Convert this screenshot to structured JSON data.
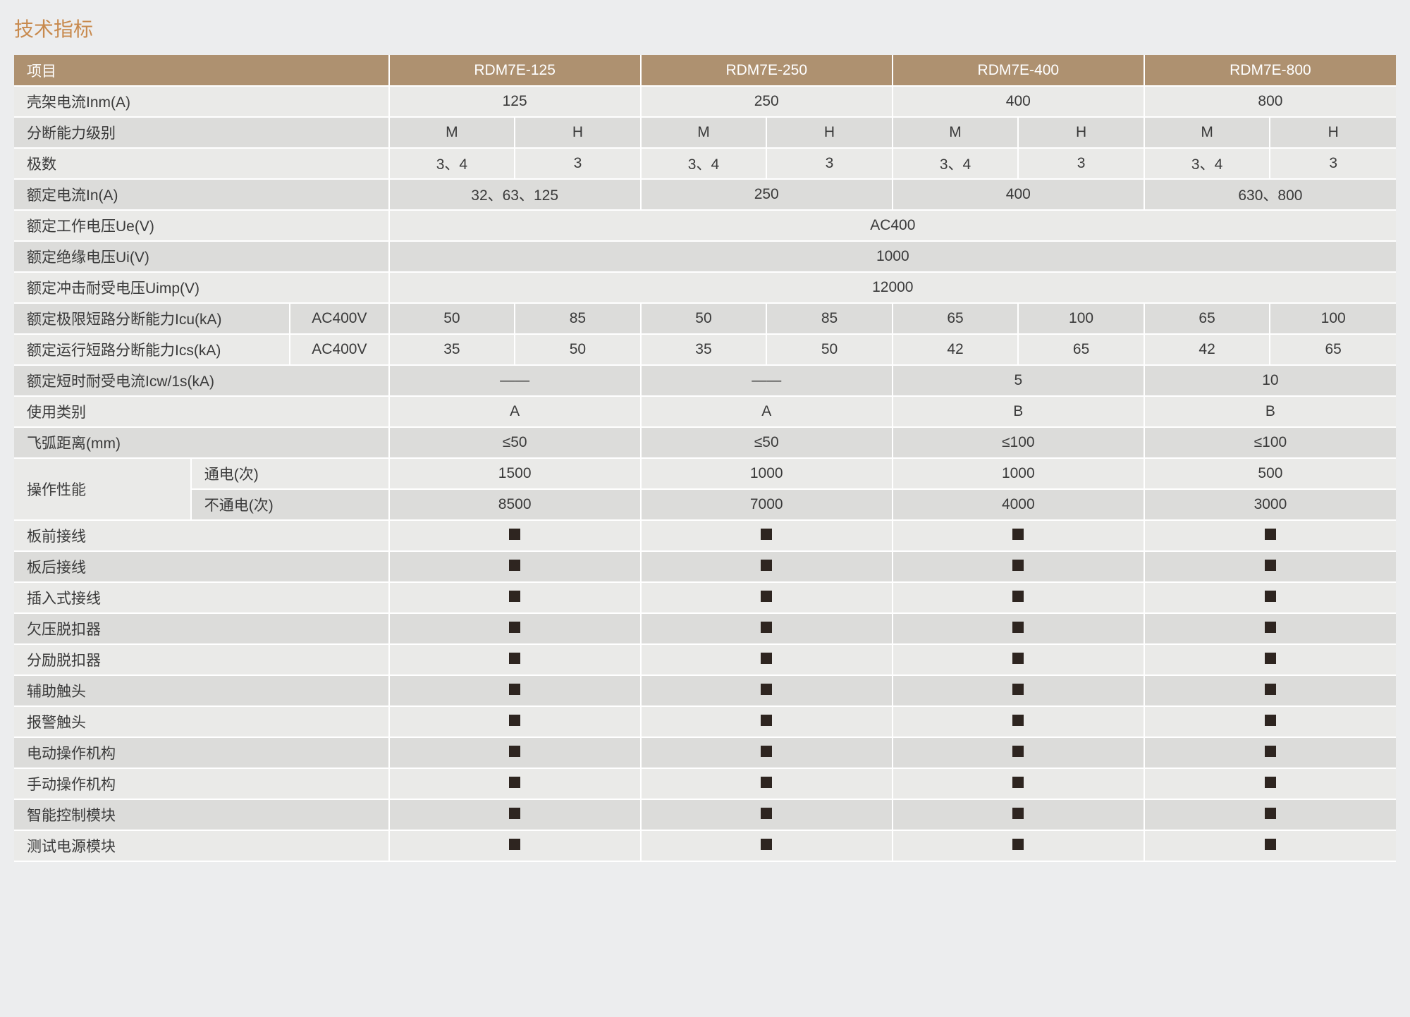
{
  "title": "技术指标",
  "title_color": "#c88a4e",
  "header_bg": "#ae9170",
  "row_odd_bg": "#eaeae8",
  "row_even_bg": "#dcdcda",
  "marker_color": "#2e2520",
  "page_bg": "#ecedee",
  "columns": {
    "main_label": "项目",
    "models": [
      "RDM7E-125",
      "RDM7E-250",
      "RDM7E-400",
      "RDM7E-800"
    ]
  },
  "rows": {
    "frame_current": {
      "label": "壳架电流Inm(A)",
      "values": [
        "125",
        "250",
        "400",
        "800"
      ]
    },
    "breaking_class": {
      "label": "分断能力级别",
      "sub": [
        "M",
        "H",
        "M",
        "H",
        "M",
        "H",
        "M",
        "H"
      ]
    },
    "poles": {
      "label": "极数",
      "sub": [
        "3、4",
        "3",
        "3、4",
        "3",
        "3、4",
        "3",
        "3、4",
        "3"
      ]
    },
    "rated_current": {
      "label": "额定电流In(A)",
      "values": [
        "32、63、125",
        "250",
        "400",
        "630、800"
      ]
    },
    "rated_voltage_ue": {
      "label": "额定工作电压Ue(V)",
      "span_value": "AC400"
    },
    "rated_voltage_ui": {
      "label": "额定绝缘电压Ui(V)",
      "span_value": "1000"
    },
    "rated_uimp": {
      "label": "额定冲击耐受电压Uimp(V)",
      "span_value": "12000"
    },
    "icu": {
      "label": "额定极限短路分断能力Icu(kA)",
      "cond": "AC400V",
      "sub": [
        "50",
        "85",
        "50",
        "85",
        "65",
        "100",
        "65",
        "100"
      ]
    },
    "ics": {
      "label": "额定运行短路分断能力Ics(kA)",
      "cond": "AC400V",
      "sub": [
        "35",
        "50",
        "35",
        "50",
        "42",
        "65",
        "42",
        "65"
      ]
    },
    "icw": {
      "label": "额定短时耐受电流Icw/1s(kA)",
      "values": [
        "——",
        "——",
        "5",
        "10"
      ]
    },
    "usage_category": {
      "label": "使用类别",
      "values": [
        "A",
        "A",
        "B",
        "B"
      ]
    },
    "arc_distance": {
      "label": "飞弧距离(mm)",
      "values": [
        "≤50",
        "≤50",
        "≤100",
        "≤100"
      ]
    },
    "op_perf": {
      "label": "操作性能",
      "on": {
        "label": "通电(次)",
        "values": [
          "1500",
          "1000",
          "1000",
          "500"
        ]
      },
      "off": {
        "label": "不通电(次)",
        "values": [
          "8500",
          "7000",
          "4000",
          "3000"
        ]
      }
    },
    "features": [
      "板前接线",
      "板后接线",
      "插入式接线",
      "欠压脱扣器",
      "分励脱扣器",
      "辅助触头",
      "报警触头",
      "电动操作机构",
      "手动操作机构",
      "智能控制模块",
      "测试电源模块"
    ]
  }
}
